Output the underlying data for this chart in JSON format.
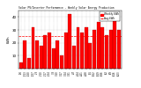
{
  "title": "Solar PV/Inverter Performance - Weekly Solar Energy Production",
  "ylabel": "kWh",
  "bar_color": "#FF0000",
  "background_color": "#FFFFFF",
  "grid_color": "#AAAAAA",
  "values": [
    5,
    22,
    8,
    32,
    22,
    18,
    26,
    28,
    16,
    22,
    10,
    28,
    42,
    18,
    32,
    28,
    32,
    20,
    30,
    36,
    32,
    26,
    30,
    38,
    30
  ],
  "avg_value": 25,
  "ylim": [
    0,
    45
  ],
  "yticks": [
    10,
    20,
    30,
    40
  ],
  "bar_edge_color": "#990000",
  "legend_labels": [
    "Weekly kWh",
    "Avg kWh"
  ],
  "legend_colors": [
    "#FF0000",
    "#FF0000"
  ],
  "avg_line_color": "#FF0000"
}
